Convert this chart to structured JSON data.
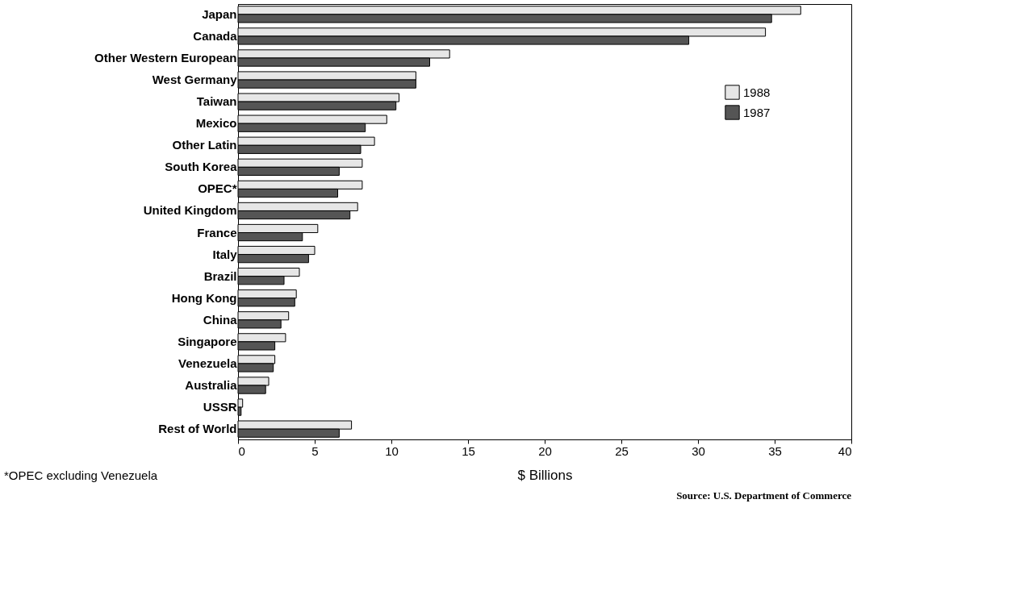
{
  "chart_data": {
    "type": "bar",
    "orientation": "horizontal",
    "xlabel": "$ Billions",
    "categories": [
      "Japan",
      "Canada",
      "Other Western European",
      "West Germany",
      "Taiwan",
      "Mexico",
      "Other Latin",
      "South Korea",
      "OPEC*",
      "United Kingdom",
      "France",
      "Italy",
      "Brazil",
      "Hong Kong",
      "China",
      "Singapore",
      "Venezuela",
      "Australia",
      "USSR",
      "Rest of World"
    ],
    "series": [
      {
        "name": "1988",
        "color": "#e6e6e6",
        "values": [
          36.7,
          34.4,
          13.8,
          11.6,
          10.5,
          9.7,
          8.9,
          8.1,
          8.1,
          7.8,
          5.2,
          5.0,
          4.0,
          3.8,
          3.3,
          3.1,
          2.4,
          2.0,
          0.3,
          7.4
        ]
      },
      {
        "name": "1987",
        "color": "#555555",
        "values": [
          34.8,
          29.4,
          12.5,
          11.6,
          10.3,
          8.3,
          8.0,
          6.6,
          6.5,
          7.3,
          4.2,
          4.6,
          3.0,
          3.7,
          2.8,
          2.4,
          2.3,
          1.8,
          0.2,
          6.6
        ]
      }
    ],
    "xlim": [
      0,
      40
    ],
    "xticks": [
      0,
      5,
      10,
      15,
      20,
      25,
      30,
      35,
      40
    ],
    "grid": false,
    "legend": "top right",
    "annotations": [
      "*OPEC excluding Venezuela",
      "Source: U.S. Department of Commerce"
    ]
  }
}
